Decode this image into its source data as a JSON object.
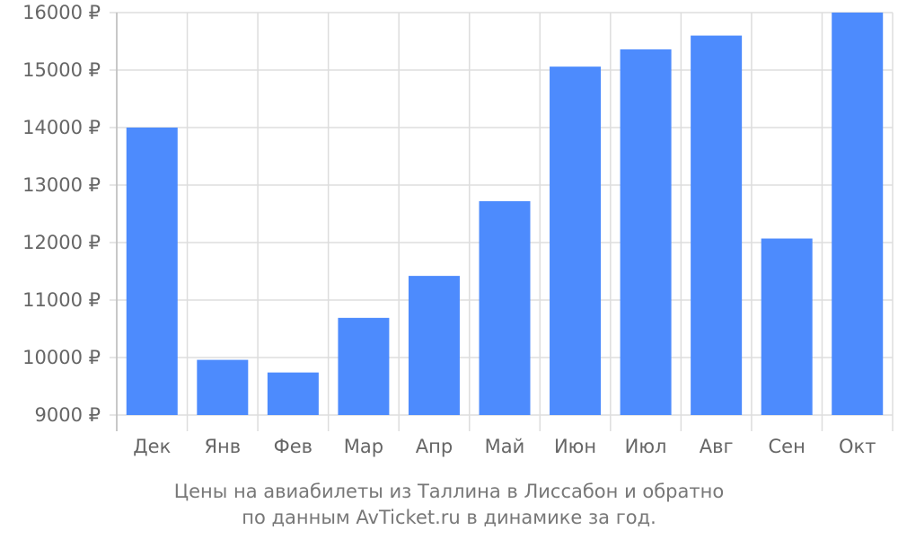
{
  "chart_data": {
    "type": "bar",
    "categories": [
      "Дек",
      "Янв",
      "Фев",
      "Мар",
      "Апр",
      "Май",
      "Июн",
      "Июл",
      "Авг",
      "Сен",
      "Окт"
    ],
    "values": [
      14000,
      9960,
      9740,
      10690,
      11420,
      12720,
      15060,
      15360,
      15600,
      12070,
      16000
    ],
    "ylim": [
      9000,
      16000
    ],
    "yticks": [
      9000,
      10000,
      11000,
      12000,
      13000,
      14000,
      15000,
      16000
    ],
    "ytick_labels": [
      "9000 ₽",
      "10000 ₽",
      "11000 ₽",
      "12000 ₽",
      "13000 ₽",
      "14000 ₽",
      "15000 ₽",
      "16000 ₽"
    ],
    "grid": true,
    "colors": {
      "bar": "#4d8bfd",
      "grid": "#dddddd",
      "axis": "#bbbbbb",
      "text": "#666666"
    }
  },
  "caption": {
    "line1": "Цены на авиабилеты из Таллина в Лиссабон и обратно",
    "line2": "по данным AvTicket.ru в динамике за год."
  }
}
